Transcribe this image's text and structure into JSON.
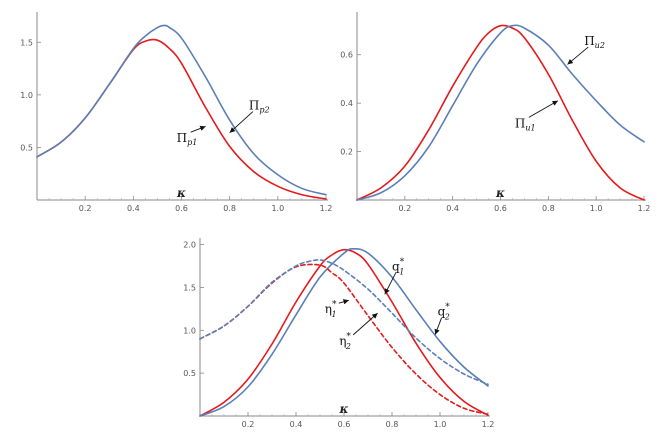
{
  "chart_data": [
    {
      "id": "top-left",
      "type": "line",
      "xlabel": "κ",
      "xlim": [
        0,
        1.2
      ],
      "ylim": [
        0,
        1.75
      ],
      "xticks": [
        "0.2",
        "0.4",
        "0.6",
        "0.8",
        "1.0",
        "1.2"
      ],
      "yticks": [
        "0.5",
        "1.0",
        "1.5"
      ],
      "series": [
        {
          "name": "Πp1",
          "color": "#e41a1c",
          "dash": false,
          "x": [
            0,
            0.1,
            0.2,
            0.3,
            0.4,
            0.45,
            0.5,
            0.55,
            0.6,
            0.7,
            0.8,
            0.9,
            1.0,
            1.1,
            1.2
          ],
          "y": [
            0.41,
            0.55,
            0.78,
            1.1,
            1.43,
            1.51,
            1.52,
            1.44,
            1.3,
            0.88,
            0.51,
            0.27,
            0.13,
            0.05,
            0.01
          ]
        },
        {
          "name": "Πp2",
          "color": "#5a7fb8",
          "dash": false,
          "x": [
            0,
            0.1,
            0.2,
            0.3,
            0.4,
            0.45,
            0.5,
            0.53,
            0.55,
            0.6,
            0.7,
            0.8,
            0.9,
            1.0,
            1.1,
            1.2
          ],
          "y": [
            0.41,
            0.55,
            0.78,
            1.1,
            1.44,
            1.56,
            1.64,
            1.66,
            1.64,
            1.54,
            1.17,
            0.76,
            0.44,
            0.24,
            0.11,
            0.05
          ]
        }
      ],
      "annotations": [
        {
          "base": "Π",
          "sub": "p1",
          "x": 0.58,
          "y": 0.55,
          "arrow_to": [
            0.7,
            0.7
          ]
        },
        {
          "base": "Π",
          "sub": "p2",
          "x": 0.88,
          "y": 0.86,
          "arrow_to": [
            0.8,
            0.64
          ]
        }
      ]
    },
    {
      "id": "top-right",
      "type": "line",
      "xlabel": "κ",
      "xlim": [
        0,
        1.2
      ],
      "ylim": [
        0,
        0.76
      ],
      "xticks": [
        "0.2",
        "0.4",
        "0.6",
        "0.8",
        "1.0",
        "1.2"
      ],
      "yticks": [
        "0.2",
        "0.4",
        "0.6"
      ],
      "series": [
        {
          "name": "Πu1",
          "color": "#e41a1c",
          "dash": false,
          "x": [
            0,
            0.1,
            0.2,
            0.3,
            0.4,
            0.5,
            0.55,
            0.6,
            0.65,
            0.7,
            0.8,
            0.9,
            1.0,
            1.1,
            1.2
          ],
          "y": [
            0,
            0.05,
            0.14,
            0.29,
            0.47,
            0.63,
            0.69,
            0.72,
            0.71,
            0.67,
            0.52,
            0.33,
            0.16,
            0.05,
            0.0
          ]
        },
        {
          "name": "Πu2",
          "color": "#5a7fb8",
          "dash": false,
          "x": [
            0,
            0.1,
            0.2,
            0.3,
            0.4,
            0.5,
            0.6,
            0.65,
            0.7,
            0.8,
            0.9,
            1.0,
            1.1,
            1.2
          ],
          "y": [
            0,
            0.03,
            0.1,
            0.22,
            0.39,
            0.56,
            0.69,
            0.72,
            0.71,
            0.64,
            0.52,
            0.41,
            0.31,
            0.24
          ]
        }
      ],
      "annotations": [
        {
          "base": "Π",
          "sub": "u2",
          "x": 0.95,
          "y": 0.64,
          "arrow_to": [
            0.88,
            0.56
          ]
        },
        {
          "base": "Π",
          "sub": "u1",
          "x": 0.66,
          "y": 0.3,
          "arrow_to": [
            0.84,
            0.41
          ]
        }
      ]
    },
    {
      "id": "bottom",
      "type": "line",
      "xlabel": "κ",
      "xlim": [
        0,
        1.2
      ],
      "ylim": [
        0,
        2.03
      ],
      "xticks": [
        "0.2",
        "0.4",
        "0.6",
        "0.8",
        "1.0",
        "1.2"
      ],
      "yticks": [
        "0.5",
        "1.0",
        "1.5",
        "2.0"
      ],
      "series": [
        {
          "name": "q1*",
          "color": "#e41a1c",
          "dash": false,
          "x": [
            0,
            0.1,
            0.2,
            0.3,
            0.4,
            0.5,
            0.55,
            0.6,
            0.65,
            0.7,
            0.8,
            0.9,
            1.0,
            1.1,
            1.2
          ],
          "y": [
            0,
            0.16,
            0.43,
            0.84,
            1.33,
            1.75,
            1.88,
            1.94,
            1.9,
            1.77,
            1.33,
            0.85,
            0.45,
            0.17,
            0.01
          ]
        },
        {
          "name": "q2*",
          "color": "#5a7fb8",
          "dash": false,
          "x": [
            0,
            0.1,
            0.2,
            0.3,
            0.4,
            0.5,
            0.6,
            0.64,
            0.7,
            0.8,
            0.9,
            1.0,
            1.1,
            1.2
          ],
          "y": [
            0,
            0.11,
            0.34,
            0.72,
            1.18,
            1.62,
            1.9,
            1.95,
            1.9,
            1.62,
            1.24,
            0.87,
            0.57,
            0.35
          ]
        },
        {
          "name": "η1*",
          "color": "#e41a1c",
          "dash": true,
          "x": [
            0,
            0.1,
            0.2,
            0.3,
            0.4,
            0.5,
            0.55,
            0.6,
            0.7,
            0.8,
            0.9,
            1.0,
            1.1,
            1.2
          ],
          "y": [
            0.9,
            1.05,
            1.28,
            1.55,
            1.74,
            1.76,
            1.67,
            1.55,
            1.17,
            0.8,
            0.49,
            0.25,
            0.09,
            0.02
          ]
        },
        {
          "name": "η2*",
          "color": "#5a7fb8",
          "dash": true,
          "x": [
            0,
            0.1,
            0.2,
            0.3,
            0.4,
            0.45,
            0.5,
            0.55,
            0.6,
            0.7,
            0.8,
            0.9,
            1.0,
            1.1,
            1.2
          ],
          "y": [
            0.9,
            1.05,
            1.28,
            1.56,
            1.75,
            1.8,
            1.82,
            1.78,
            1.7,
            1.48,
            1.2,
            0.91,
            0.67,
            0.49,
            0.37
          ]
        }
      ],
      "annotations": [
        {
          "base": "q",
          "sub": "1",
          "sup": "*",
          "x": 0.8,
          "y": 1.7,
          "arrow_to": [
            0.77,
            1.42
          ]
        },
        {
          "base": "η",
          "sub": "1",
          "sup": "*",
          "x": 0.52,
          "y": 1.2,
          "arrow_to": [
            0.62,
            1.35
          ]
        },
        {
          "base": "η",
          "sub": "2",
          "sup": "*",
          "x": 0.58,
          "y": 0.83,
          "arrow_to": [
            0.74,
            1.2
          ]
        },
        {
          "base": "q",
          "sub": "2",
          "sup": "*",
          "x": 0.99,
          "y": 1.17,
          "arrow_to": [
            0.98,
            0.95
          ]
        }
      ]
    }
  ]
}
